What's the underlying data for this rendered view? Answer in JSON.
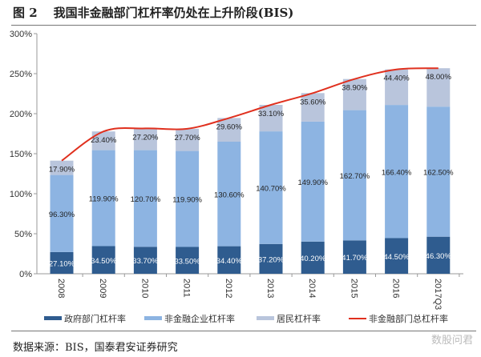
{
  "header": {
    "figure_no": "图 2",
    "title": "我国非金融部门杠杆率仍处在上升阶段(BIS)"
  },
  "footer": {
    "source": "数据来源：BIS，国泰君安证券研究"
  },
  "watermark": "数股问君",
  "colors": {
    "gov": "#2f5c8f",
    "corp": "#8db4e2",
    "household": "#b9c5dc",
    "total": "#e0301e"
  },
  "chart_data": {
    "type": "bar",
    "stacked": true,
    "categories": [
      "2008",
      "2009",
      "2010",
      "2011",
      "2012",
      "2013",
      "2014",
      "2015",
      "2016",
      "2017Q3"
    ],
    "ylim": [
      0,
      300
    ],
    "yticks": [
      "0%",
      "50%",
      "100%",
      "150%",
      "200%",
      "250%",
      "300%"
    ],
    "ytick_values": [
      0,
      50,
      100,
      150,
      200,
      250,
      300
    ],
    "grid": false,
    "legend_position": "bottom",
    "series": [
      {
        "name": "政府部门杠杆率",
        "type": "bar",
        "values": [
          27.1,
          34.5,
          33.7,
          33.5,
          34.4,
          37.2,
          40.2,
          41.7,
          44.5,
          46.3
        ],
        "labels": [
          "27.10%",
          "34.50%",
          "33.70%",
          "33.50%",
          "34.40%",
          "37.20%",
          "40.20%",
          "41.70%",
          "44.50%",
          "46.30%"
        ]
      },
      {
        "name": "非金融企业杠杆率",
        "type": "bar",
        "values": [
          96.3,
          119.9,
          120.7,
          119.9,
          130.6,
          140.7,
          149.9,
          162.7,
          166.4,
          162.5
        ],
        "labels": [
          "96.30%",
          "119.90%",
          "120.70%",
          "119.90%",
          "130.60%",
          "140.70%",
          "149.90%",
          "162.70%",
          "166.40%",
          "162.50%"
        ]
      },
      {
        "name": "居民杠杆率",
        "type": "bar",
        "values": [
          17.9,
          23.4,
          27.2,
          27.7,
          29.6,
          33.1,
          35.6,
          38.9,
          44.4,
          48.0
        ],
        "labels": [
          "17.90%",
          "23.40%",
          "27.20%",
          "27.70%",
          "29.60%",
          "33.10%",
          "35.60%",
          "38.90%",
          "44.40%",
          "48.00%"
        ]
      },
      {
        "name": "非金融部门总杠杆率",
        "type": "line",
        "smooth": true,
        "values": [
          141.3,
          177.8,
          181.6,
          181.1,
          194.6,
          211.0,
          225.7,
          243.3,
          255.3,
          256.8
        ]
      }
    ]
  }
}
